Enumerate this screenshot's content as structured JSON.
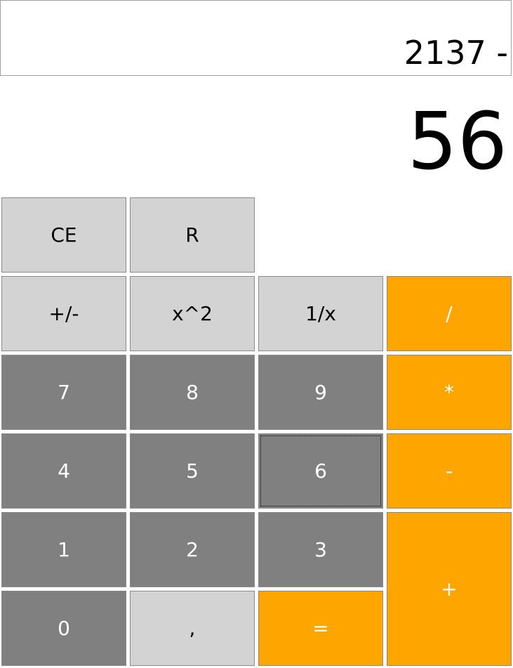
{
  "history": {
    "expression": "2137 -"
  },
  "display": {
    "value": "56"
  },
  "buttons": {
    "ce": "CE",
    "r": "R",
    "negate": "+/-",
    "square": "x^2",
    "reciprocal": "1/x",
    "divide": "/",
    "seven": "7",
    "eight": "8",
    "nine": "9",
    "multiply": "*",
    "four": "4",
    "five": "5",
    "six": "6",
    "subtract": "-",
    "one": "1",
    "two": "2",
    "three": "3",
    "add": "+",
    "zero": "0",
    "decimal": ",",
    "equals": "="
  },
  "colors": {
    "function_key": "#d3d3d3",
    "digit_key": "#808080",
    "operator_key": "#ffa500",
    "border": "#8a8a8a"
  }
}
